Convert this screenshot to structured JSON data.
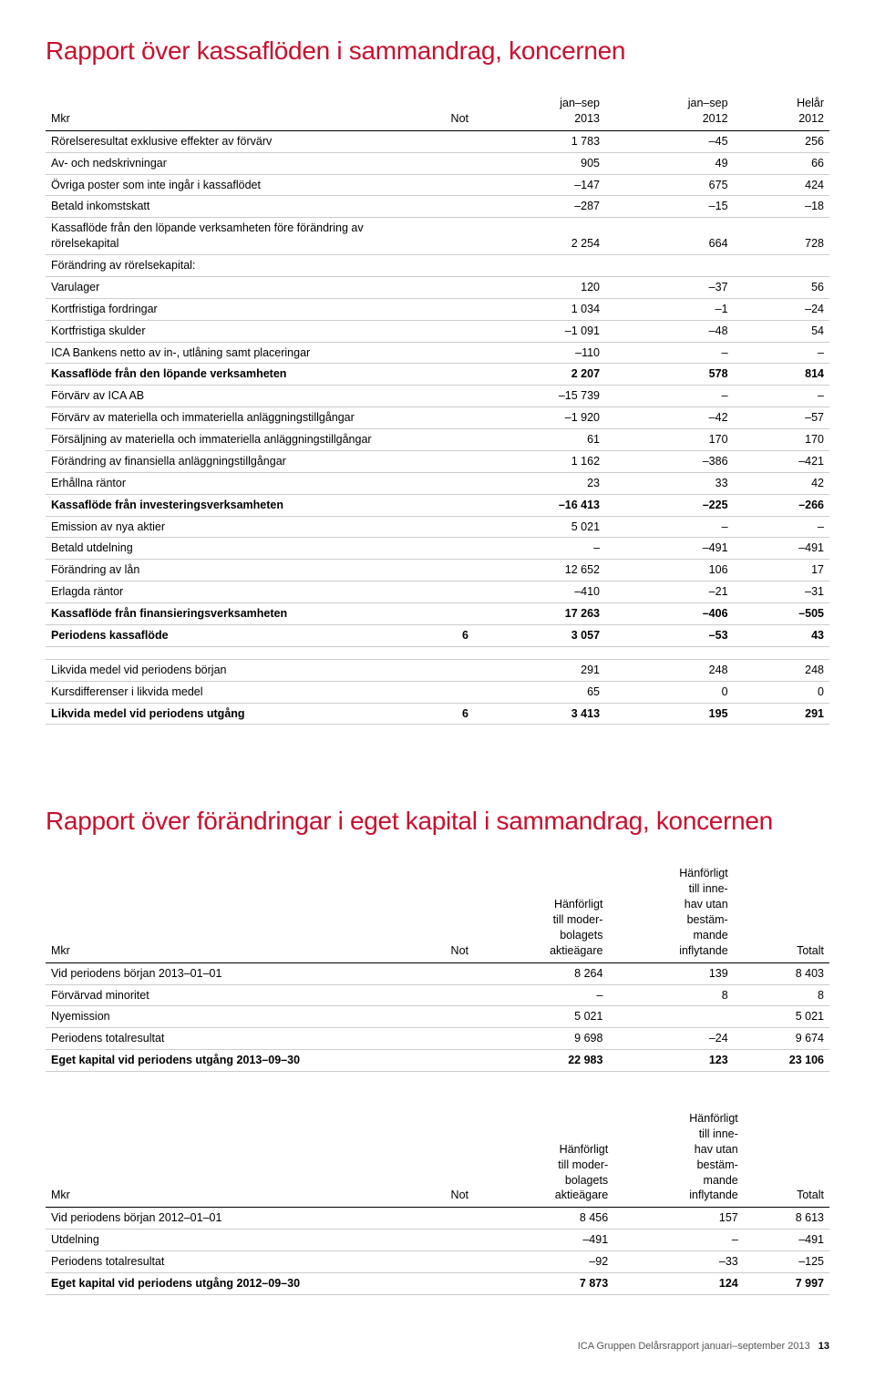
{
  "title1": "Rapport över kassaflöden i sammandrag, koncernen",
  "title2": "Rapport över förändringar i eget kapital i sammandrag, koncernen",
  "cf_head": {
    "c0": "Mkr",
    "c1": "Not",
    "c2": "jan–sep\n2013",
    "c3": "jan–sep\n2012",
    "c4": "Helår\n2012"
  },
  "cf_rows": [
    {
      "l": "Rörelseresultat exklusive effekter av förvärv",
      "n": "",
      "v": [
        "1 783",
        "–45",
        "256"
      ],
      "b": 0
    },
    {
      "l": "Av- och nedskrivningar",
      "n": "",
      "v": [
        "905",
        "49",
        "66"
      ],
      "b": 0
    },
    {
      "l": "Övriga poster som inte ingår i kassaflödet",
      "n": "",
      "v": [
        "–147",
        "675",
        "424"
      ],
      "b": 0
    },
    {
      "l": "Betald inkomstskatt",
      "n": "",
      "v": [
        "–287",
        "–15",
        "–18"
      ],
      "b": 0
    },
    {
      "l": "Kassaflöde från den löpande verksamheten före förändring av rörelsekapital",
      "n": "",
      "v": [
        "2 254",
        "664",
        "728"
      ],
      "b": 0
    },
    {
      "l": "Förändring av rörelsekapital:",
      "n": "",
      "v": [
        "",
        "",
        ""
      ],
      "b": 0
    },
    {
      "l": "Varulager",
      "n": "",
      "v": [
        "120",
        "–37",
        "56"
      ],
      "b": 0
    },
    {
      "l": "Kortfristiga fordringar",
      "n": "",
      "v": [
        "1 034",
        "–1",
        "–24"
      ],
      "b": 0
    },
    {
      "l": "Kortfristiga skulder",
      "n": "",
      "v": [
        "–1 091",
        "–48",
        "54"
      ],
      "b": 0
    },
    {
      "l": "ICA Bankens netto av in-, utlåning samt placeringar",
      "n": "",
      "v": [
        "–110",
        "–",
        "–"
      ],
      "b": 0
    },
    {
      "l": "Kassaflöde från den löpande verksamheten",
      "n": "",
      "v": [
        "2 207",
        "578",
        "814"
      ],
      "b": 1
    },
    {
      "l": "Förvärv av ICA AB",
      "n": "",
      "v": [
        "–15 739",
        "–",
        "–"
      ],
      "b": 0
    },
    {
      "l": "Förvärv av materiella och immateriella anläggningstillgångar",
      "n": "",
      "v": [
        "–1 920",
        "–42",
        "–57"
      ],
      "b": 0
    },
    {
      "l": "Försäljning av materiella och immateriella anläggningstillgångar",
      "n": "",
      "v": [
        "61",
        "170",
        "170"
      ],
      "b": 0
    },
    {
      "l": "Förändring av finansiella anläggningstillgångar",
      "n": "",
      "v": [
        "1 162",
        "–386",
        "–421"
      ],
      "b": 0
    },
    {
      "l": "Erhållna räntor",
      "n": "",
      "v": [
        "23",
        "33",
        "42"
      ],
      "b": 0
    },
    {
      "l": "Kassaflöde från investeringsverksamheten",
      "n": "",
      "v": [
        "–16 413",
        "–225",
        "–266"
      ],
      "b": 1
    },
    {
      "l": "Emission av nya aktier",
      "n": "",
      "v": [
        "5 021",
        "–",
        "–"
      ],
      "b": 0
    },
    {
      "l": "Betald utdelning",
      "n": "",
      "v": [
        "–",
        "–491",
        "–491"
      ],
      "b": 0
    },
    {
      "l": "Förändring av lån",
      "n": "",
      "v": [
        "12 652",
        "106",
        "17"
      ],
      "b": 0
    },
    {
      "l": "Erlagda räntor",
      "n": "",
      "v": [
        "–410",
        "–21",
        "–31"
      ],
      "b": 0
    },
    {
      "l": "Kassaflöde från finansieringsverksamheten",
      "n": "",
      "v": [
        "17 263",
        "–406",
        "–505"
      ],
      "b": 1
    },
    {
      "l": "Periodens kassaflöde",
      "n": "6",
      "v": [
        "3 057",
        "–53",
        "43"
      ],
      "b": 1
    },
    {
      "gap": 1
    },
    {
      "l": "Likvida medel vid periodens början",
      "n": "",
      "v": [
        "291",
        "248",
        "248"
      ],
      "b": 0
    },
    {
      "l": "Kursdifferenser i likvida medel",
      "n": "",
      "v": [
        "65",
        "0",
        "0"
      ],
      "b": 0
    },
    {
      "l": "Likvida medel vid periodens utgång",
      "n": "6",
      "v": [
        "3 413",
        "195",
        "291"
      ],
      "b": 1
    }
  ],
  "eq_head": {
    "c0": "Mkr",
    "c1": "Not",
    "c2": "Hänförligt\ntill moder-\nbolagets\naktieägare",
    "c3": "Hänförligt\ntill inne-\nhav utan\nbestäm-\nmande\ninflytande",
    "c4": "Totalt"
  },
  "eq2013": [
    {
      "l": "Vid periodens början 2013–01–01",
      "n": "",
      "v": [
        "8 264",
        "139",
        "8 403"
      ],
      "b": 0
    },
    {
      "l": "Förvärvad minoritet",
      "n": "",
      "v": [
        "–",
        "8",
        "8"
      ],
      "b": 0
    },
    {
      "l": "Nyemission",
      "n": "",
      "v": [
        "5 021",
        "",
        "5 021"
      ],
      "b": 0
    },
    {
      "l": "Periodens totalresultat",
      "n": "",
      "v": [
        "9 698",
        "–24",
        "9 674"
      ],
      "b": 0
    },
    {
      "l": "Eget kapital vid periodens utgång 2013–09–30",
      "n": "",
      "v": [
        "22 983",
        "123",
        "23 106"
      ],
      "b": 1
    }
  ],
  "eq2012": [
    {
      "l": "Vid periodens början 2012–01–01",
      "n": "",
      "v": [
        "8 456",
        "157",
        "8 613"
      ],
      "b": 0
    },
    {
      "l": "Utdelning",
      "n": "",
      "v": [
        "–491",
        "–",
        "–491"
      ],
      "b": 0
    },
    {
      "l": "Periodens totalresultat",
      "n": "",
      "v": [
        "–92",
        "–33",
        "–125"
      ],
      "b": 0
    },
    {
      "l": "Eget kapital vid periodens utgång 2012–09–30",
      "n": "",
      "v": [
        "7 873",
        "124",
        "7 997"
      ],
      "b": 1
    }
  ],
  "footer_text": "ICA Gruppen Delårsrapport januari–september 2013",
  "footer_page": "13"
}
